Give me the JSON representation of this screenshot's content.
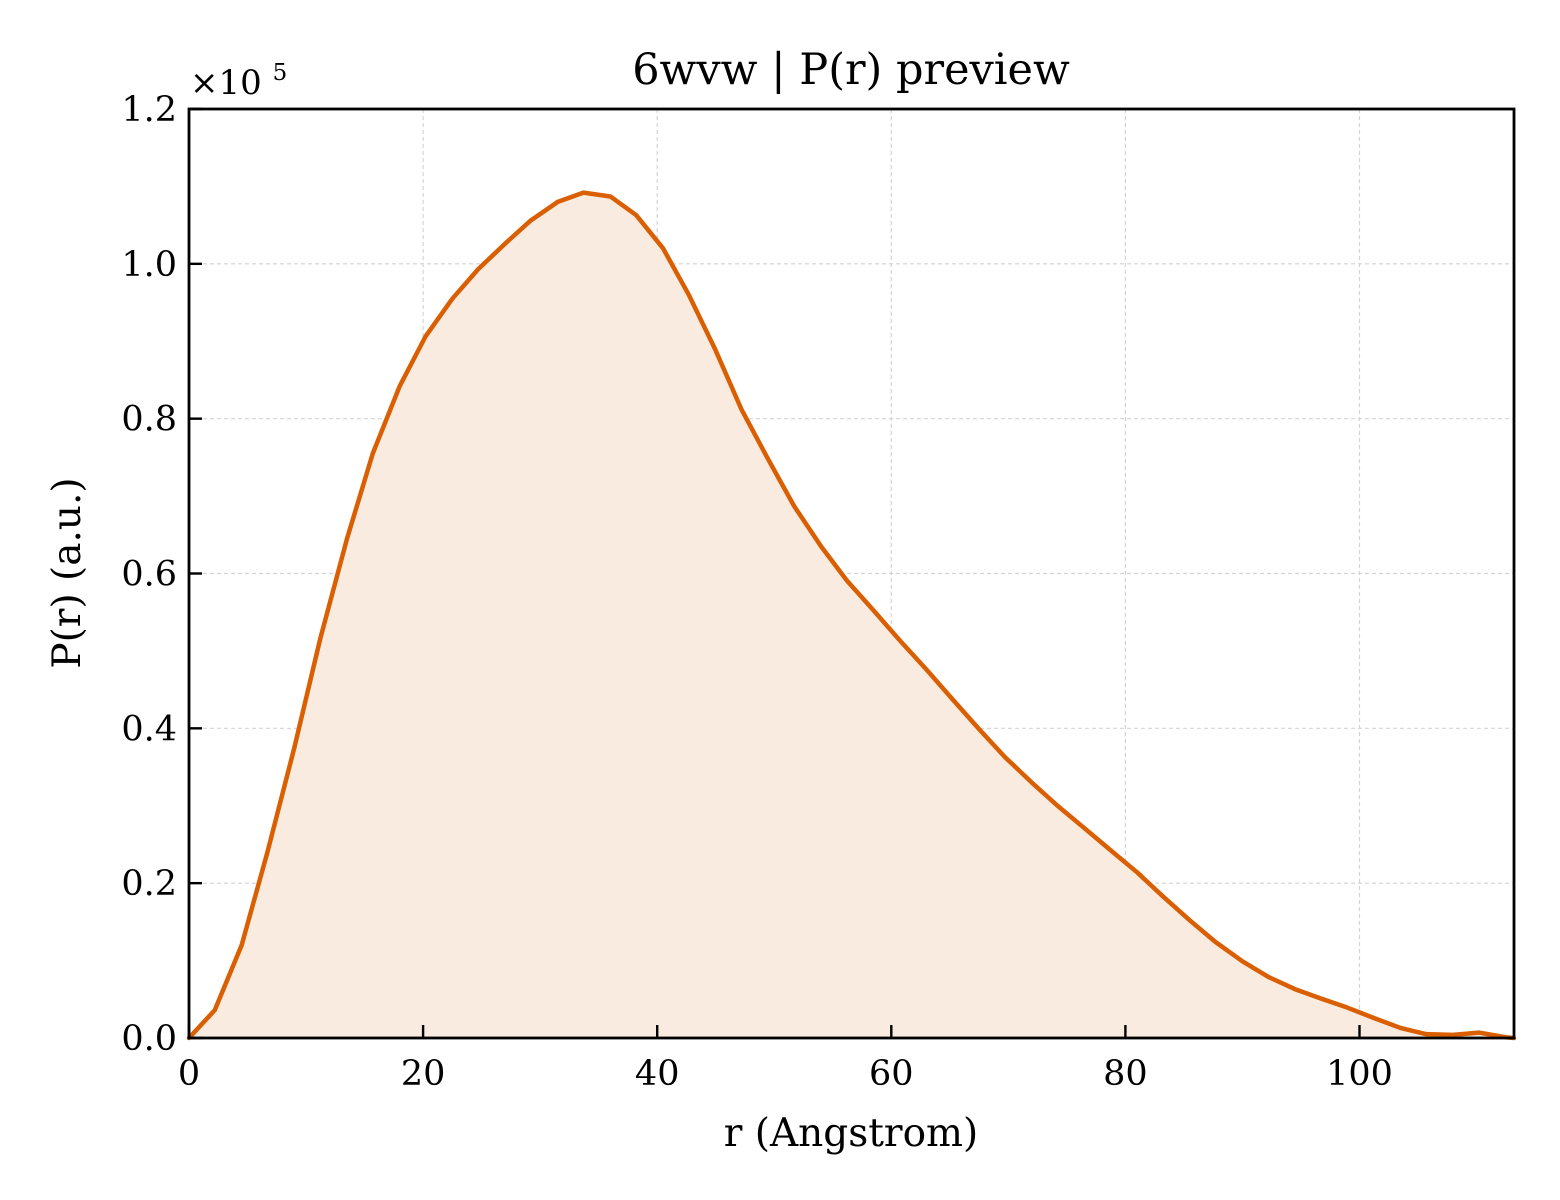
{
  "chart_data": {
    "type": "area",
    "title": "6wvw | P(r) preview",
    "xlabel": "r (Angstrom)",
    "ylabel": "P(r) (a.u.)",
    "y_offset_label": {
      "base": "×10",
      "exponent": "5"
    },
    "xlim": [
      0,
      113.2
    ],
    "ylim": [
      0,
      1.2
    ],
    "x_ticks": [
      0,
      20,
      40,
      60,
      80,
      100
    ],
    "x_tick_labels": [
      "0",
      "20",
      "40",
      "60",
      "80",
      "100"
    ],
    "y_ticks": [
      0,
      0.2,
      0.4,
      0.6,
      0.8,
      1.0,
      1.2
    ],
    "y_tick_labels": [
      "0.0",
      "0.2",
      "0.4",
      "0.6",
      "0.8",
      "1.0",
      "1.2"
    ],
    "grid": true,
    "legend": "none",
    "colors": {
      "line": "#d95f02",
      "fill": "#f9ebe0",
      "grid": "#d4d4d4",
      "axis": "#000000"
    },
    "series": [
      {
        "x": [
          0,
          2.2,
          4.5,
          6.7,
          9.0,
          11.2,
          13.5,
          15.7,
          18.0,
          20.2,
          22.5,
          24.7,
          27.0,
          29.2,
          31.5,
          33.7,
          36.0,
          38.2,
          40.5,
          42.7,
          45.0,
          47.2,
          49.5,
          51.7,
          54.0,
          56.2,
          58.5,
          60.7,
          63.0,
          65.2,
          67.5,
          69.7,
          72.0,
          74.2,
          76.5,
          78.7,
          81.0,
          83.2,
          85.5,
          87.7,
          90.0,
          92.2,
          94.5,
          96.7,
          99.0,
          101.2,
          103.5,
          105.7,
          108.0,
          110.2,
          112.5,
          113.2
        ],
        "y": [
          0.0,
          0.036,
          0.12,
          0.24,
          0.375,
          0.515,
          0.645,
          0.755,
          0.842,
          0.906,
          0.955,
          0.993,
          1.026,
          1.056,
          1.08,
          1.092,
          1.087,
          1.063,
          1.02,
          0.96,
          0.888,
          0.812,
          0.747,
          0.687,
          0.635,
          0.591,
          0.552,
          0.514,
          0.476,
          0.438,
          0.399,
          0.363,
          0.33,
          0.3,
          0.271,
          0.243,
          0.214,
          0.183,
          0.152,
          0.124,
          0.099,
          0.079,
          0.063,
          0.051,
          0.039,
          0.026,
          0.013,
          0.005,
          0.004,
          0.007,
          0.001,
          0.0
        ]
      }
    ]
  }
}
